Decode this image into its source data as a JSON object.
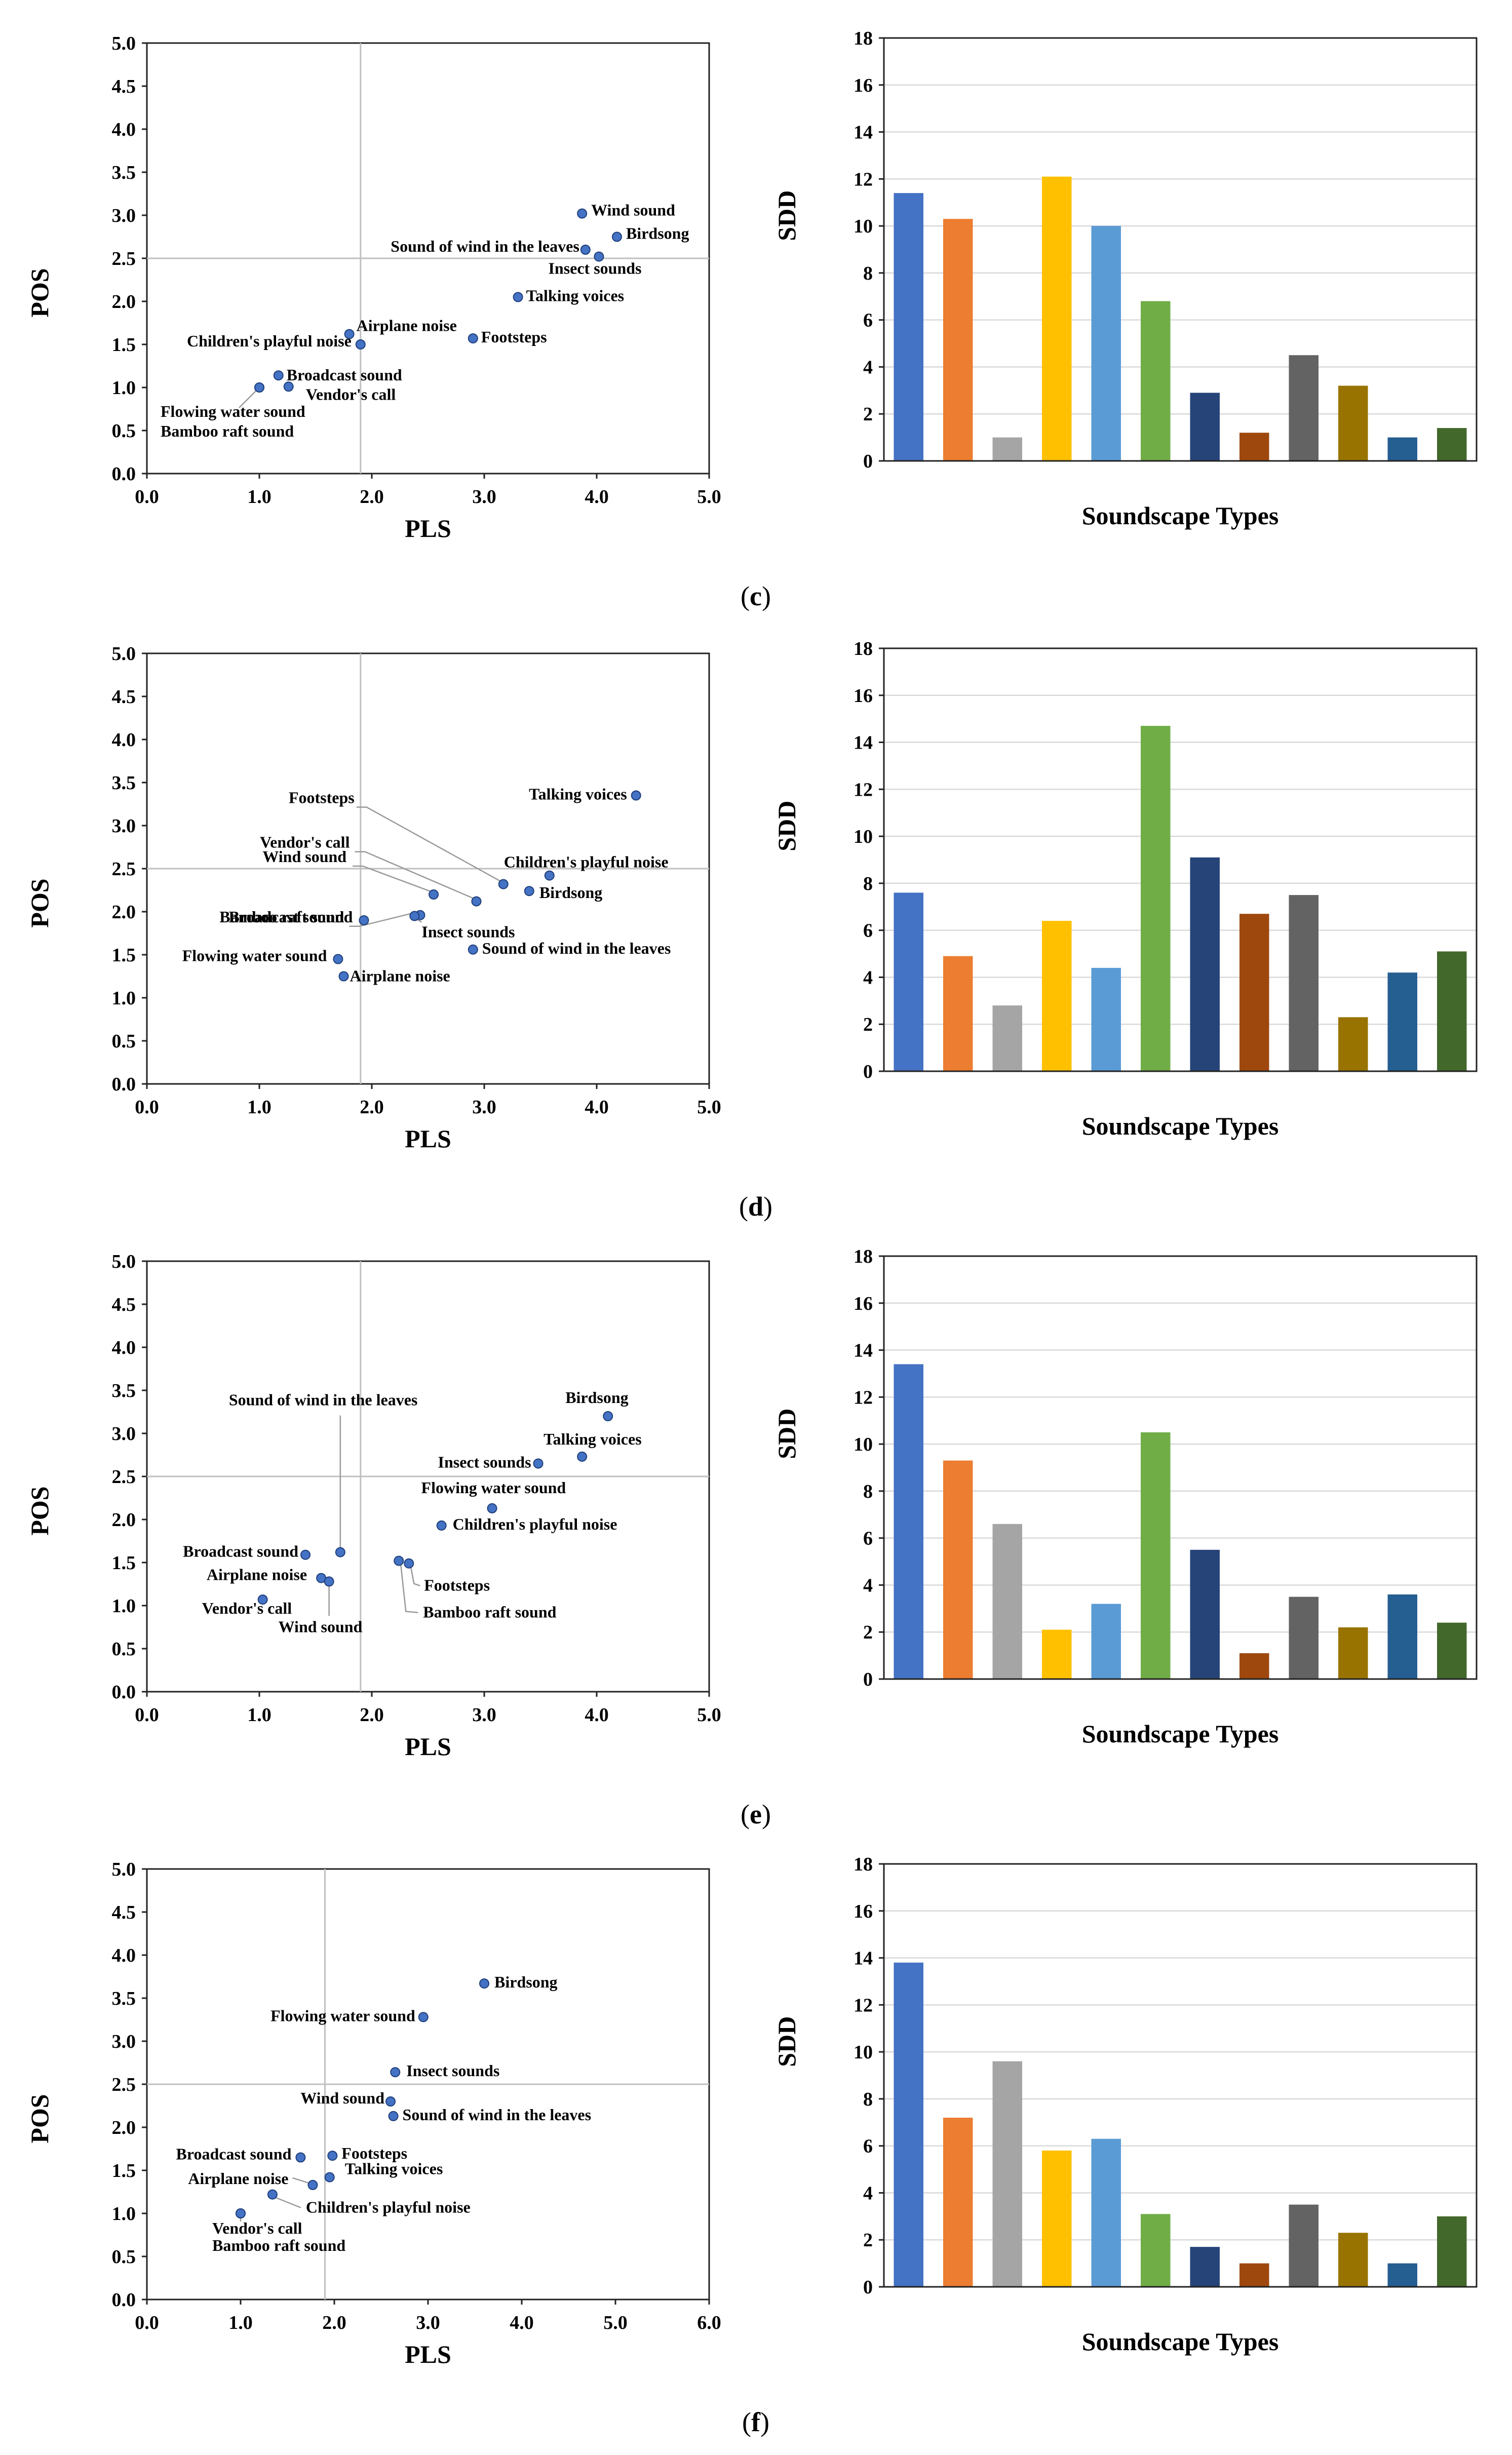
{
  "bar_colors": [
    "#4472C4",
    "#ED7D31",
    "#A5A5A5",
    "#FFC000",
    "#5B9BD5",
    "#70AD47",
    "#264478",
    "#9E480E",
    "#636363",
    "#997300",
    "#255E91",
    "#43682B"
  ],
  "point_color": "#4472C4",
  "panels": [
    {
      "label": "c",
      "scatter": {
        "xlabel": "PLS",
        "ylabel": "POS",
        "xticks": [
          "0.0",
          "1.0",
          "2.0",
          "3.0",
          "4.0",
          "5.0"
        ],
        "yticks": [
          "0.0",
          "0.5",
          "1.0",
          "1.5",
          "2.0",
          "2.5",
          "3.0",
          "3.5",
          "4.0",
          "4.5",
          "5.0"
        ]
      },
      "bars": {
        "xlabel": "Soundscape Types",
        "ylabel": "SDD",
        "yticks": [
          "0",
          "2",
          "4",
          "6",
          "8",
          "10",
          "12",
          "14",
          "16",
          "18"
        ]
      }
    },
    {
      "label": "d",
      "scatter": {
        "xlabel": "PLS",
        "ylabel": "POS",
        "xticks": [
          "0.0",
          "1.0",
          "2.0",
          "3.0",
          "4.0",
          "5.0"
        ],
        "yticks": [
          "0.0",
          "0.5",
          "1.0",
          "1.5",
          "2.0",
          "2.5",
          "3.0",
          "3.5",
          "4.0",
          "4.5",
          "5.0"
        ]
      },
      "bars": {
        "xlabel": "Soundscape Types",
        "ylabel": "SDD",
        "yticks": [
          "0",
          "2",
          "4",
          "6",
          "8",
          "10",
          "12",
          "14",
          "16",
          "18"
        ]
      }
    },
    {
      "label": "e",
      "scatter": {
        "xlabel": "PLS",
        "ylabel": "POS",
        "xticks": [
          "0.0",
          "1.0",
          "2.0",
          "3.0",
          "4.0",
          "5.0"
        ],
        "yticks": [
          "0.0",
          "0.5",
          "1.0",
          "1.5",
          "2.0",
          "2.5",
          "3.0",
          "3.5",
          "4.0",
          "4.5",
          "5.0"
        ]
      },
      "bars": {
        "xlabel": "Soundscape Types",
        "ylabel": "SDD",
        "yticks": [
          "0",
          "2",
          "4",
          "6",
          "8",
          "10",
          "12",
          "14",
          "16",
          "18"
        ]
      }
    },
    {
      "label": "f",
      "scatter": {
        "xlabel": "PLS",
        "ylabel": "POS",
        "xticks": [
          "0.0",
          "1.0",
          "2.0",
          "3.0",
          "4.0",
          "5.0",
          "6.0"
        ],
        "yticks": [
          "0.0",
          "0.5",
          "1.0",
          "1.5",
          "2.0",
          "2.5",
          "3.0",
          "3.5",
          "4.0",
          "4.5",
          "5.0"
        ]
      },
      "bars": {
        "xlabel": "Soundscape Types",
        "ylabel": "SDD",
        "yticks": [
          "0",
          "2",
          "4",
          "6",
          "8",
          "10",
          "12",
          "14",
          "16",
          "18"
        ]
      }
    }
  ],
  "chart_data": [
    {
      "panel": "c",
      "type": "scatter",
      "xlabel": "PLS",
      "ylabel": "POS",
      "xlim": [
        0,
        5
      ],
      "ylim": [
        0,
        5
      ],
      "crosshair": [
        1.9,
        2.5
      ],
      "points": [
        {
          "name": "Wind sound",
          "x": 3.87,
          "y": 3.02
        },
        {
          "name": "Birdsong",
          "x": 4.18,
          "y": 2.75
        },
        {
          "name": "Sound of wind in the leaves",
          "x": 3.9,
          "y": 2.6
        },
        {
          "name": "Insect sounds",
          "x": 4.02,
          "y": 2.52
        },
        {
          "name": "Talking voices",
          "x": 3.3,
          "y": 2.05
        },
        {
          "name": "Airplane noise",
          "x": 1.8,
          "y": 1.62
        },
        {
          "name": "Children's playful noise",
          "x": 1.9,
          "y": 1.5
        },
        {
          "name": "Footsteps",
          "x": 2.9,
          "y": 1.57
        },
        {
          "name": "Broadcast sound",
          "x": 1.17,
          "y": 1.14
        },
        {
          "name": "Vendor's call",
          "x": 1.26,
          "y": 1.01
        },
        {
          "name": "Flowing water sound",
          "x": 1.0,
          "y": 1.0
        },
        {
          "name": "Bamboo raft sound",
          "x": 1.0,
          "y": 1.0
        }
      ]
    },
    {
      "panel": "c",
      "type": "bar",
      "xlabel": "Soundscape Types",
      "ylabel": "SDD",
      "ylim": [
        0,
        18
      ],
      "values": [
        11.4,
        10.3,
        1.0,
        12.1,
        10.0,
        6.8,
        2.9,
        1.2,
        4.5,
        3.2,
        1.0,
        1.4
      ]
    },
    {
      "panel": "d",
      "type": "scatter",
      "xlabel": "PLS",
      "ylabel": "POS",
      "xlim": [
        0,
        5
      ],
      "ylim": [
        0,
        5
      ],
      "crosshair": [
        1.9,
        2.5
      ],
      "points": [
        {
          "name": "Talking voices",
          "x": 4.35,
          "y": 3.35
        },
        {
          "name": "Children's playful noise",
          "x": 3.58,
          "y": 2.42
        },
        {
          "name": "Footsteps",
          "x": 3.17,
          "y": 2.32
        },
        {
          "name": "Birdsong",
          "x": 3.4,
          "y": 2.24
        },
        {
          "name": "Vendor's call",
          "x": 2.93,
          "y": 2.12
        },
        {
          "name": "Wind sound",
          "x": 2.55,
          "y": 2.2
        },
        {
          "name": "Broadcast sound",
          "x": 2.43,
          "y": 1.96
        },
        {
          "name": "Insect sounds",
          "x": 2.38,
          "y": 1.95
        },
        {
          "name": "Bamboo raft sound",
          "x": 1.93,
          "y": 1.9
        },
        {
          "name": "Sound of wind in the leaves",
          "x": 2.9,
          "y": 1.56
        },
        {
          "name": "Flowing water sound",
          "x": 1.7,
          "y": 1.45
        },
        {
          "name": "Airplane noise",
          "x": 1.75,
          "y": 1.25
        }
      ]
    },
    {
      "panel": "d",
      "type": "bar",
      "xlabel": "Soundscape Types",
      "ylabel": "SDD",
      "ylim": [
        0,
        18
      ],
      "values": [
        7.6,
        4.9,
        2.8,
        6.4,
        4.4,
        14.7,
        9.1,
        6.7,
        7.5,
        2.3,
        4.2,
        5.1
      ]
    },
    {
      "panel": "e",
      "type": "scatter",
      "xlabel": "PLS",
      "ylabel": "POS",
      "xlim": [
        0,
        5
      ],
      "ylim": [
        0,
        5
      ],
      "crosshair": [
        1.9,
        2.5
      ],
      "points": [
        {
          "name": "Birdsong",
          "x": 4.1,
          "y": 3.2
        },
        {
          "name": "Talking voices",
          "x": 3.87,
          "y": 2.73
        },
        {
          "name": "Insect sounds",
          "x": 3.48,
          "y": 2.65
        },
        {
          "name": "Flowing water sound",
          "x": 3.07,
          "y": 2.13
        },
        {
          "name": "Children's playful noise",
          "x": 2.62,
          "y": 1.93
        },
        {
          "name": "Sound of wind in the leaves",
          "x": 1.72,
          "y": 1.62
        },
        {
          "name": "Broadcast sound",
          "x": 1.41,
          "y": 1.59
        },
        {
          "name": "Footsteps",
          "x": 2.33,
          "y": 1.49
        },
        {
          "name": "Bamboo raft sound",
          "x": 2.24,
          "y": 1.52
        },
        {
          "name": "Airplane noise",
          "x": 1.55,
          "y": 1.32
        },
        {
          "name": "Wind sound",
          "x": 1.62,
          "y": 1.28
        },
        {
          "name": "Vendor's call",
          "x": 1.03,
          "y": 1.07
        }
      ]
    },
    {
      "panel": "e",
      "type": "bar",
      "xlabel": "Soundscape Types",
      "ylabel": "SDD",
      "ylim": [
        0,
        18
      ],
      "values": [
        13.4,
        9.3,
        6.6,
        2.1,
        3.2,
        10.5,
        5.5,
        1.1,
        3.5,
        2.2,
        3.6,
        2.4
      ]
    },
    {
      "panel": "f",
      "type": "scatter",
      "xlabel": "PLS",
      "ylabel": "POS",
      "xlim": [
        0,
        6
      ],
      "ylim": [
        0,
        5
      ],
      "crosshair": [
        1.9,
        2.5
      ],
      "points": [
        {
          "name": "Birdsong",
          "x": 3.6,
          "y": 3.67
        },
        {
          "name": "Flowing water sound",
          "x": 2.95,
          "y": 3.28
        },
        {
          "name": "Insect sounds",
          "x": 2.65,
          "y": 2.64
        },
        {
          "name": "Wind sound",
          "x": 2.6,
          "y": 2.3
        },
        {
          "name": "Sound of wind in the leaves",
          "x": 2.63,
          "y": 2.13
        },
        {
          "name": "Footsteps",
          "x": 1.98,
          "y": 1.67
        },
        {
          "name": "Broadcast sound",
          "x": 1.64,
          "y": 1.65
        },
        {
          "name": "Talking voices",
          "x": 1.95,
          "y": 1.42
        },
        {
          "name": "Airplane noise",
          "x": 1.77,
          "y": 1.33
        },
        {
          "name": "Children's playful noise",
          "x": 1.34,
          "y": 1.22
        },
        {
          "name": "Vendor's call",
          "x": 1.0,
          "y": 1.0
        },
        {
          "name": "Bamboo raft sound",
          "x": 1.0,
          "y": 1.0
        }
      ]
    },
    {
      "panel": "f",
      "type": "bar",
      "xlabel": "Soundscape Types",
      "ylabel": "SDD",
      "ylim": [
        0,
        18
      ],
      "values": [
        13.8,
        7.2,
        9.6,
        5.8,
        6.3,
        3.1,
        1.7,
        1.0,
        3.5,
        2.3,
        1.0,
        3.0
      ]
    }
  ]
}
